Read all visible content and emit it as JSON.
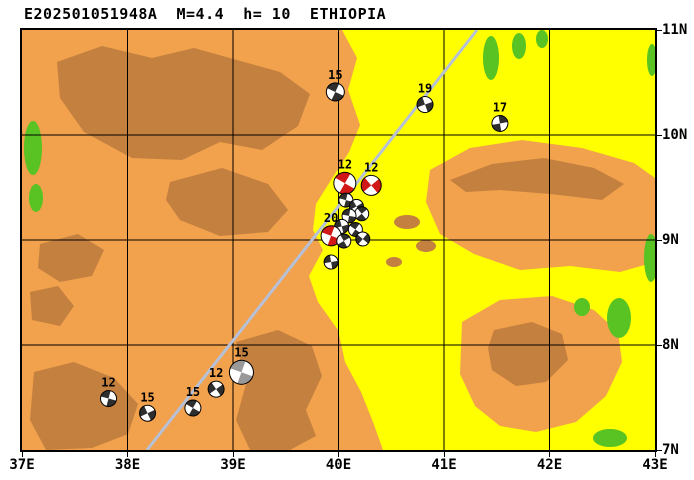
{
  "title": "E202501051948A  M=4.4  h= 10  ETHIOPIA",
  "map": {
    "region_label": "ETHIOPIA",
    "x_ticks": [
      "37E",
      "38E",
      "39E",
      "40E",
      "41E",
      "42E",
      "43E"
    ],
    "y_ticks": [
      "11N",
      "10N",
      "9N",
      "8N",
      "7N"
    ],
    "lon_range": [
      37,
      43
    ],
    "lat_range": [
      7,
      11
    ],
    "colors": {
      "lowland": "#FFFF00",
      "midland": "#F2A14C",
      "highland": "#C3803F",
      "vegetation": "#58C322",
      "boundary_line": "#B6C0D6",
      "frame": "#000000",
      "ball_gray": "#2E2E2E",
      "ball_red": "#D01818",
      "ball_light": "#999999"
    }
  },
  "chart_data": {
    "type": "map",
    "title": "E202501051948A  M=4.4  h= 10  ETHIOPIA",
    "x_axis_ticks": [
      "37E",
      "38E",
      "39E",
      "40E",
      "41E",
      "42E",
      "43E"
    ],
    "y_axis_ticks": [
      "11N",
      "10N",
      "9N",
      "8N",
      "7N"
    ],
    "events": [
      {
        "lon": 39.97,
        "lat": 10.41,
        "label": "15",
        "r": 9,
        "rot": 25,
        "color": "gray"
      },
      {
        "lon": 40.82,
        "lat": 10.29,
        "label": "19",
        "r": 8,
        "rot": -20,
        "color": "gray"
      },
      {
        "lon": 41.53,
        "lat": 10.11,
        "label": "17",
        "r": 8,
        "rot": 80,
        "color": "gray"
      },
      {
        "lon": 40.06,
        "lat": 9.54,
        "label": "12",
        "r": 11,
        "rot": 30,
        "color": "red"
      },
      {
        "lon": 40.31,
        "lat": 9.52,
        "label": "12",
        "r": 10,
        "rot": -40,
        "color": "red"
      },
      {
        "lon": 40.07,
        "lat": 9.38,
        "label": "",
        "r": 7,
        "rot": 15,
        "color": "gray"
      },
      {
        "lon": 40.17,
        "lat": 9.32,
        "label": "",
        "r": 7,
        "rot": -30,
        "color": "gray"
      },
      {
        "lon": 40.22,
        "lat": 9.25,
        "label": "",
        "r": 7,
        "rot": 50,
        "color": "gray"
      },
      {
        "lon": 40.1,
        "lat": 9.23,
        "label": "",
        "r": 7,
        "rot": 10,
        "color": "gray"
      },
      {
        "lon": 40.03,
        "lat": 9.13,
        "label": "",
        "r": 7,
        "rot": -15,
        "color": "gray"
      },
      {
        "lon": 40.16,
        "lat": 9.1,
        "label": "",
        "r": 7,
        "rot": 35,
        "color": "gray"
      },
      {
        "lon": 40.23,
        "lat": 9.01,
        "label": "",
        "r": 7,
        "rot": -50,
        "color": "gray"
      },
      {
        "lon": 39.93,
        "lat": 9.04,
        "label": "20",
        "r": 10,
        "rot": 20,
        "color": "red"
      },
      {
        "lon": 40.05,
        "lat": 8.99,
        "label": "",
        "r": 7,
        "rot": 60,
        "color": "gray"
      },
      {
        "lon": 39.93,
        "lat": 8.79,
        "label": "",
        "r": 7,
        "rot": -10,
        "color": "gray"
      },
      {
        "lon": 37.82,
        "lat": 7.49,
        "label": "12",
        "r": 8,
        "rot": 15,
        "color": "gray"
      },
      {
        "lon": 38.19,
        "lat": 7.35,
        "label": "15",
        "r": 8,
        "rot": -25,
        "color": "gray"
      },
      {
        "lon": 38.62,
        "lat": 7.4,
        "label": "15",
        "r": 8,
        "rot": 30,
        "color": "gray"
      },
      {
        "lon": 38.84,
        "lat": 7.58,
        "label": "12",
        "r": 8,
        "rot": -35,
        "color": "gray"
      },
      {
        "lon": 39.08,
        "lat": 7.74,
        "label": "15",
        "r": 12,
        "rot": 20,
        "color": "light"
      }
    ]
  }
}
